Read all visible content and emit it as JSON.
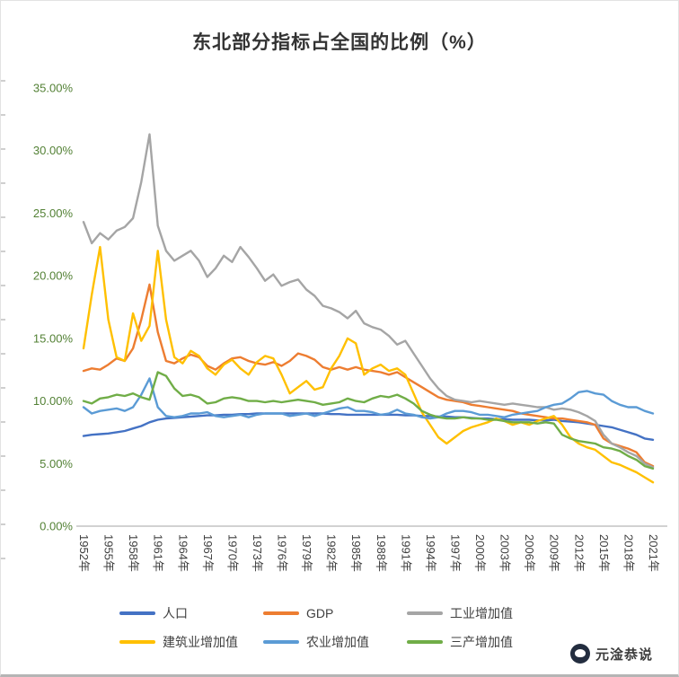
{
  "title": "东北部分指标占全国的比例（%）",
  "watermark": {
    "text": "元淦恭说"
  },
  "chart_data": {
    "type": "line",
    "title": "东北部分指标占全国的比例（%）",
    "x_range": [
      1952,
      2021
    ],
    "x_tick_labels": [
      "1952年",
      "1955年",
      "1958年",
      "1961年",
      "1964年",
      "1967年",
      "1970年",
      "1973年",
      "1976年",
      "1979年",
      "1982年",
      "1985年",
      "1988年",
      "1991年",
      "1994年",
      "1997年",
      "2000年",
      "2003年",
      "2006年",
      "2009年",
      "2012年",
      "2015年",
      "2018年",
      "2021年"
    ],
    "y_ticks": [
      "35.00%",
      "30.00%",
      "25.00%",
      "20.00%",
      "15.00%",
      "10.00%",
      "5.00%",
      "0.00%"
    ],
    "ylim": [
      0,
      35
    ],
    "grid": false,
    "legend_position": "bottom",
    "tick_label_color": "#538135",
    "axis_line_color": "#a6a6a6",
    "series": [
      {
        "name": "人口",
        "color": "#4472C4",
        "values": [
          7.2,
          7.3,
          7.35,
          7.4,
          7.5,
          7.6,
          7.8,
          8.0,
          8.3,
          8.5,
          8.6,
          8.65,
          8.7,
          8.75,
          8.8,
          8.85,
          8.85,
          8.9,
          8.9,
          8.95,
          8.95,
          9.0,
          9.0,
          9.0,
          9.0,
          9.0,
          9.0,
          9.0,
          9.0,
          9.0,
          8.95,
          8.95,
          8.9,
          8.9,
          8.9,
          8.9,
          8.9,
          8.9,
          8.9,
          8.85,
          8.85,
          8.8,
          8.8,
          8.75,
          8.75,
          8.7,
          8.7,
          8.65,
          8.6,
          8.6,
          8.55,
          8.55,
          8.5,
          8.5,
          8.5,
          8.45,
          8.45,
          8.5,
          8.4,
          8.35,
          8.3,
          8.2,
          8.1,
          8.0,
          7.9,
          7.7,
          7.5,
          7.3,
          7.0,
          6.9
        ]
      },
      {
        "name": "GDP",
        "color": "#ED7D31",
        "values": [
          12.4,
          12.6,
          12.5,
          12.9,
          13.4,
          13.2,
          14.2,
          16.5,
          19.3,
          15.5,
          13.2,
          13.0,
          13.4,
          13.7,
          13.5,
          12.8,
          12.5,
          13.0,
          13.4,
          13.5,
          13.2,
          13.0,
          12.9,
          13.1,
          12.8,
          13.2,
          13.8,
          13.6,
          13.3,
          12.7,
          12.5,
          12.7,
          12.5,
          12.7,
          12.5,
          12.4,
          12.3,
          12.1,
          12.3,
          11.9,
          11.5,
          11.1,
          10.7,
          10.3,
          10.1,
          10.0,
          9.9,
          9.7,
          9.6,
          9.5,
          9.4,
          9.3,
          9.2,
          9.0,
          8.9,
          8.8,
          8.7,
          8.6,
          8.6,
          8.5,
          8.4,
          8.3,
          8.1,
          7.0,
          6.6,
          6.4,
          6.2,
          5.9,
          5.1,
          4.8
        ]
      },
      {
        "name": "工业增加值",
        "color": "#A5A5A5",
        "values": [
          24.3,
          22.6,
          23.4,
          22.9,
          23.6,
          23.9,
          24.6,
          27.5,
          31.3,
          24.0,
          22.0,
          21.2,
          21.6,
          22.0,
          21.2,
          19.9,
          20.6,
          21.6,
          21.1,
          22.3,
          21.5,
          20.6,
          19.6,
          20.1,
          19.2,
          19.5,
          19.7,
          18.9,
          18.4,
          17.6,
          17.4,
          17.1,
          16.6,
          17.2,
          16.2,
          15.9,
          15.7,
          15.2,
          14.5,
          14.8,
          13.8,
          12.8,
          11.8,
          11.0,
          10.4,
          10.1,
          10.0,
          9.9,
          10.0,
          9.9,
          9.8,
          9.7,
          9.8,
          9.7,
          9.6,
          9.5,
          9.5,
          9.3,
          9.4,
          9.3,
          9.1,
          8.8,
          8.4,
          7.3,
          6.6,
          6.3,
          5.9,
          5.6,
          5.0,
          4.7
        ]
      },
      {
        "name": "建筑业增加值",
        "color": "#FFC000",
        "values": [
          14.2,
          18.5,
          22.3,
          16.5,
          13.5,
          13.2,
          17.0,
          14.8,
          16.0,
          22.0,
          16.5,
          13.5,
          13.0,
          14.0,
          13.6,
          12.6,
          12.1,
          12.9,
          13.3,
          12.6,
          12.1,
          13.1,
          13.6,
          13.4,
          12.1,
          10.6,
          11.1,
          11.6,
          10.9,
          11.1,
          12.6,
          13.6,
          15.0,
          14.6,
          12.1,
          12.6,
          12.9,
          12.4,
          12.6,
          12.1,
          10.6,
          9.1,
          8.1,
          7.1,
          6.6,
          7.1,
          7.6,
          7.9,
          8.1,
          8.3,
          8.6,
          8.4,
          8.1,
          8.3,
          8.1,
          8.4,
          8.6,
          8.8,
          8.1,
          7.1,
          6.6,
          6.3,
          6.1,
          5.6,
          5.1,
          4.9,
          4.6,
          4.3,
          3.9,
          3.5
        ]
      },
      {
        "name": "农业增加值",
        "color": "#5B9BD5",
        "values": [
          9.5,
          9.0,
          9.2,
          9.3,
          9.4,
          9.2,
          9.5,
          10.5,
          11.8,
          9.5,
          8.8,
          8.7,
          8.8,
          9.0,
          9.0,
          9.1,
          8.8,
          8.7,
          8.8,
          8.9,
          8.7,
          8.9,
          9.0,
          9.0,
          9.0,
          8.8,
          8.9,
          9.0,
          8.8,
          9.0,
          9.2,
          9.4,
          9.5,
          9.2,
          9.2,
          9.1,
          8.9,
          9.0,
          9.3,
          9.0,
          8.9,
          8.7,
          8.6,
          8.7,
          9.0,
          9.2,
          9.2,
          9.1,
          8.9,
          8.9,
          8.8,
          8.7,
          8.9,
          9.0,
          9.1,
          9.2,
          9.5,
          9.7,
          9.8,
          10.2,
          10.7,
          10.8,
          10.6,
          10.5,
          10.0,
          9.7,
          9.5,
          9.5,
          9.2,
          9.0
        ]
      },
      {
        "name": "三产增加值",
        "color": "#70AD47",
        "values": [
          10.0,
          9.8,
          10.2,
          10.3,
          10.5,
          10.4,
          10.6,
          10.3,
          10.1,
          12.3,
          12.0,
          11.0,
          10.4,
          10.5,
          10.3,
          9.8,
          9.9,
          10.2,
          10.3,
          10.2,
          10.0,
          10.0,
          9.9,
          10.0,
          9.9,
          10.0,
          10.1,
          10.0,
          9.9,
          9.7,
          9.8,
          9.9,
          10.2,
          10.0,
          9.9,
          10.2,
          10.4,
          10.3,
          10.5,
          10.2,
          9.8,
          9.2,
          8.9,
          8.7,
          8.6,
          8.6,
          8.7,
          8.6,
          8.6,
          8.5,
          8.5,
          8.4,
          8.3,
          8.3,
          8.3,
          8.2,
          8.3,
          8.2,
          7.3,
          7.0,
          6.8,
          6.7,
          6.6,
          6.3,
          6.2,
          6.0,
          5.6,
          5.3,
          4.8,
          4.6
        ]
      }
    ]
  }
}
